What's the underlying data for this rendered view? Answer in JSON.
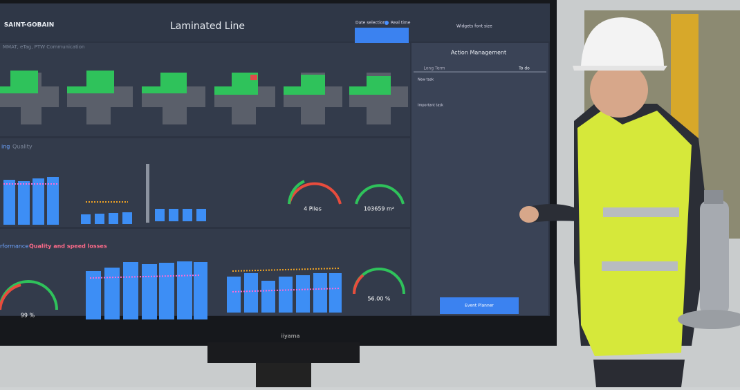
{
  "header": {
    "brand": "SAINT-GOBAIN",
    "title": "Laminated Line",
    "date_selection": "Date selection",
    "real_time": "Real time",
    "widgets": "Widgets font size"
  },
  "sections": {
    "top": "MMAT, eTag, PTW Communication",
    "middle": "ing",
    "middle_tab": "Quality",
    "bottom": "rformance",
    "bottom_tab": "Quality and speed losses"
  },
  "gauges": [
    "4 Piles",
    "103659 m²",
    "99 %",
    "56.00 %"
  ],
  "action": {
    "title": "Action Management",
    "tabs": [
      "Long Term",
      "To do"
    ],
    "tasks": [
      "New task",
      "Important task"
    ],
    "button": "Event Planner"
  },
  "monitor_brand": "iiyama"
}
